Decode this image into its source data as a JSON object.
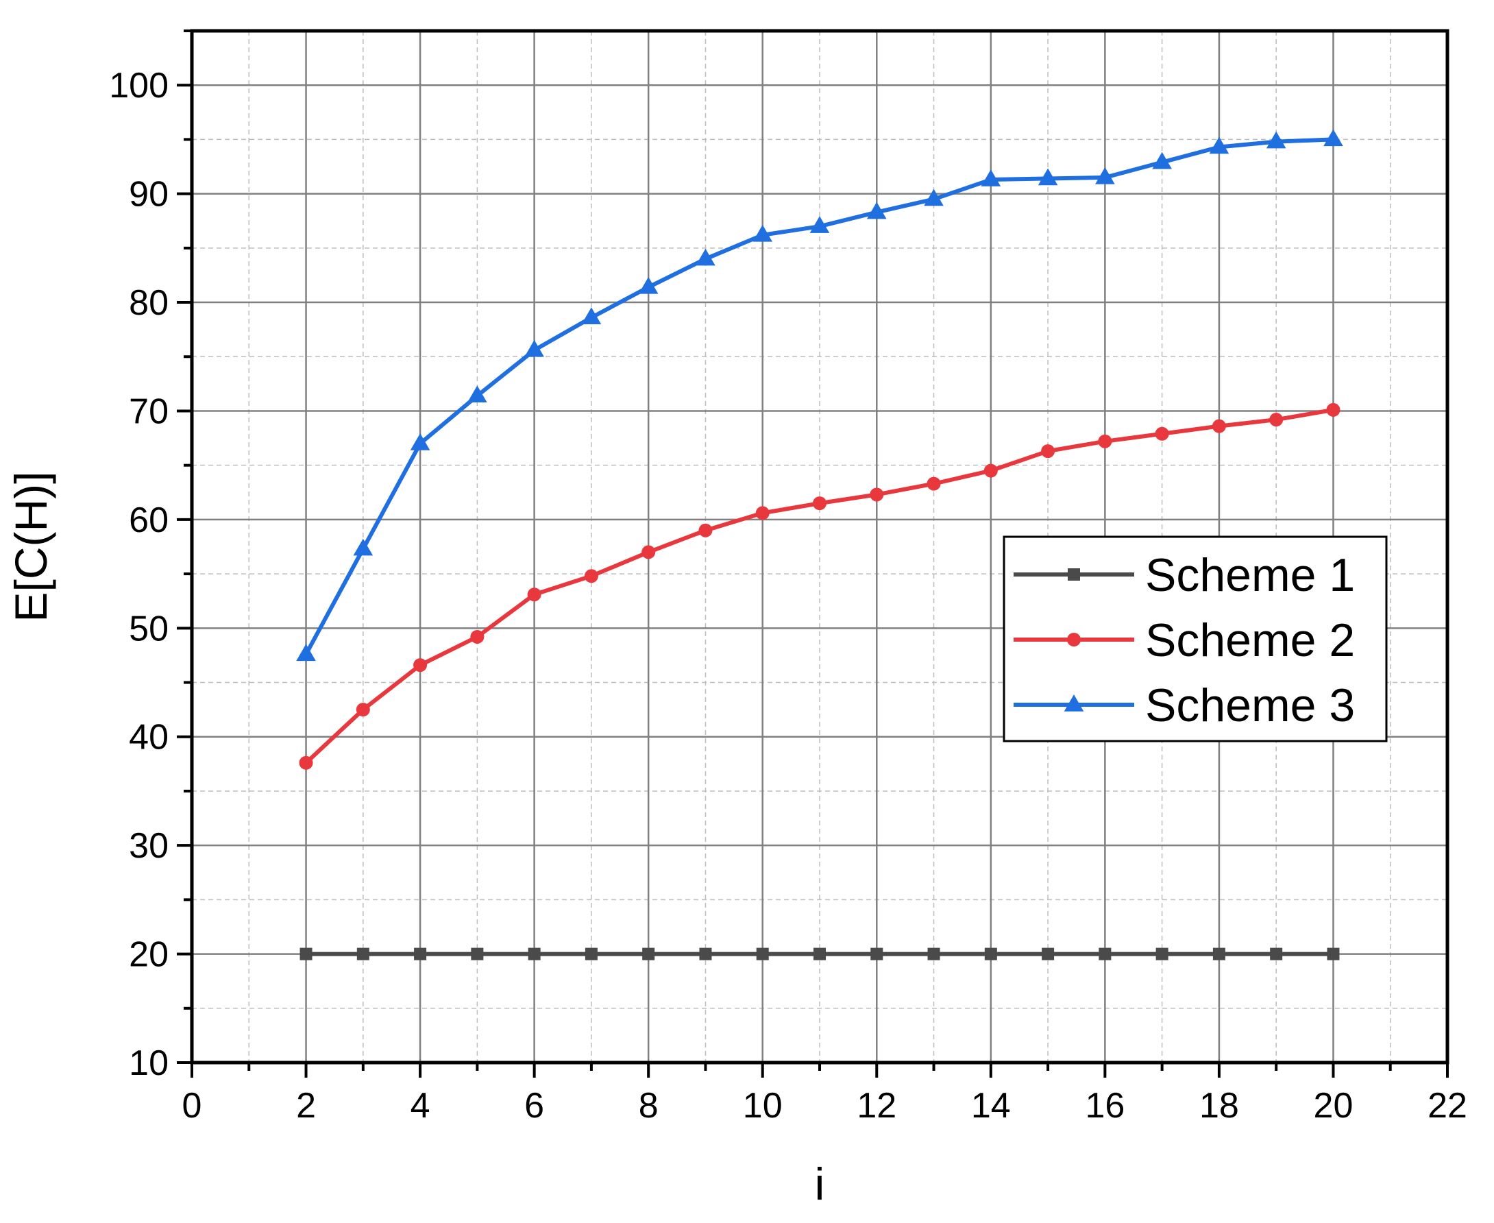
{
  "chart_data": {
    "type": "line",
    "title": "",
    "xlabel": "i",
    "ylabel": "E[C(H)]",
    "xlim": [
      0,
      22
    ],
    "ylim": [
      10,
      105
    ],
    "xticks": [
      0,
      2,
      4,
      6,
      8,
      10,
      12,
      14,
      16,
      18,
      20,
      22
    ],
    "yticks": [
      10,
      20,
      30,
      40,
      50,
      60,
      70,
      80,
      90,
      100
    ],
    "grid": true,
    "legend_position": "right",
    "x": [
      2,
      3,
      4,
      5,
      6,
      7,
      8,
      9,
      10,
      11,
      12,
      13,
      14,
      15,
      16,
      17,
      18,
      19,
      20
    ],
    "series": [
      {
        "name": "Scheme 1",
        "color": "#4a4a4a",
        "marker": "square",
        "values": [
          20,
          20,
          20,
          20,
          20,
          20,
          20,
          20,
          20,
          20,
          20,
          20,
          20,
          20,
          20,
          20,
          20,
          20,
          20
        ]
      },
      {
        "name": "Scheme 2",
        "color": "#e8383d",
        "marker": "circle",
        "values": [
          37.6,
          42.5,
          46.6,
          49.2,
          53.1,
          54.8,
          57.0,
          59.0,
          60.6,
          61.5,
          62.3,
          63.3,
          64.5,
          66.3,
          67.2,
          67.9,
          68.6,
          69.2,
          70.1
        ]
      },
      {
        "name": "Scheme 3",
        "color": "#1f6fe0",
        "marker": "triangle",
        "values": [
          47.6,
          57.3,
          67.0,
          71.4,
          75.6,
          78.6,
          81.4,
          84.0,
          86.2,
          87.0,
          88.3,
          89.5,
          91.3,
          91.4,
          91.5,
          92.9,
          94.3,
          94.8,
          95.0
        ]
      }
    ]
  }
}
